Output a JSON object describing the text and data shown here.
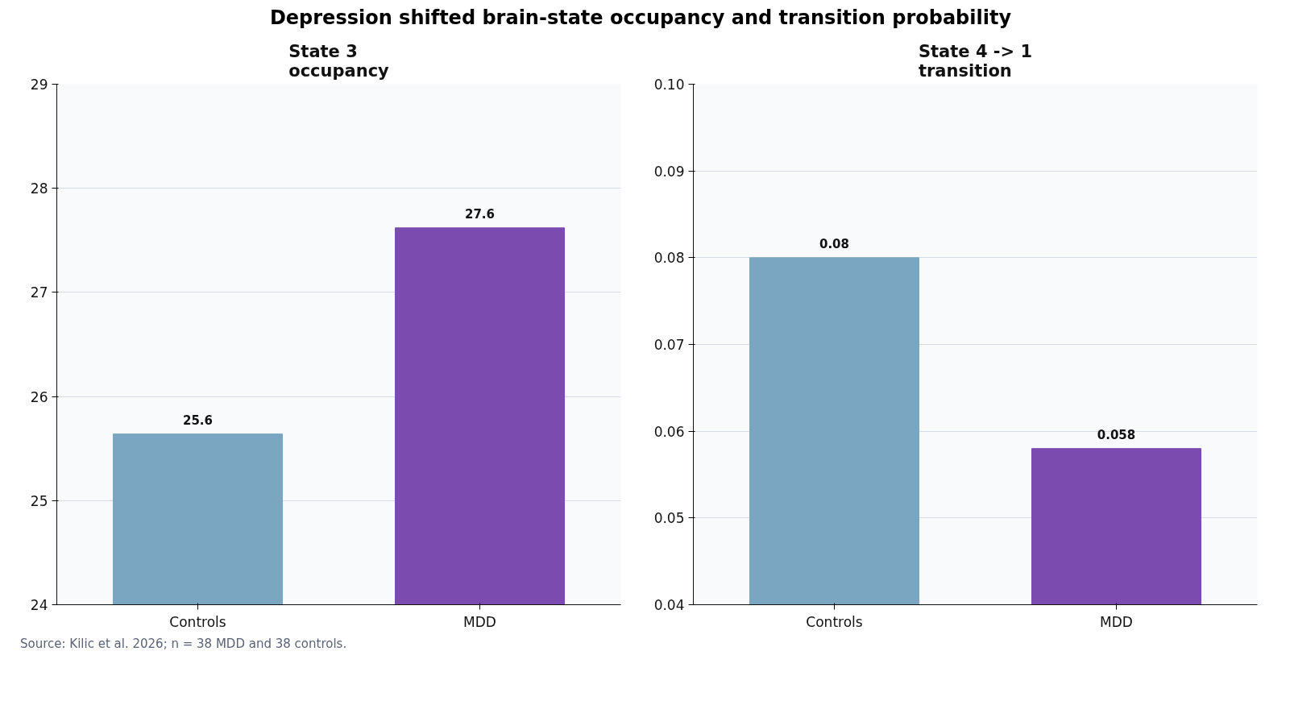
{
  "chart_data": [
    {
      "type": "bar",
      "title": "Depression shifted brain-state occupancy and transition probability",
      "subtitle": "State 3\noccupancy",
      "categories": [
        "Controls",
        "MDD"
      ],
      "values": [
        25.64,
        27.62
      ],
      "value_labels": [
        "25.6",
        "27.6"
      ],
      "colors": [
        "#7ba6c2",
        "#7b4bb0"
      ],
      "ylim": [
        24,
        29
      ],
      "yticks": [
        24,
        25,
        26,
        27,
        28,
        29
      ],
      "grid": "y",
      "annotations": [
        "Source: Kilic et al. 2026; n = 38 MDD and 38 controls."
      ]
    },
    {
      "type": "bar",
      "subtitle": "State 4 -> 1\ntransition",
      "categories": [
        "Controls",
        "MDD"
      ],
      "values": [
        0.08,
        0.058
      ],
      "data_labels": true,
      "colors": [
        "#7ba6c2",
        "#7b4bb0"
      ],
      "ylim": [
        0.04,
        0.1
      ],
      "yticks": [
        0.04,
        0.05,
        0.06,
        0.07,
        0.08,
        0.09,
        {
          "value": 0.1,
          "label": "0.10"
        }
      ],
      "grid": "y"
    }
  ]
}
